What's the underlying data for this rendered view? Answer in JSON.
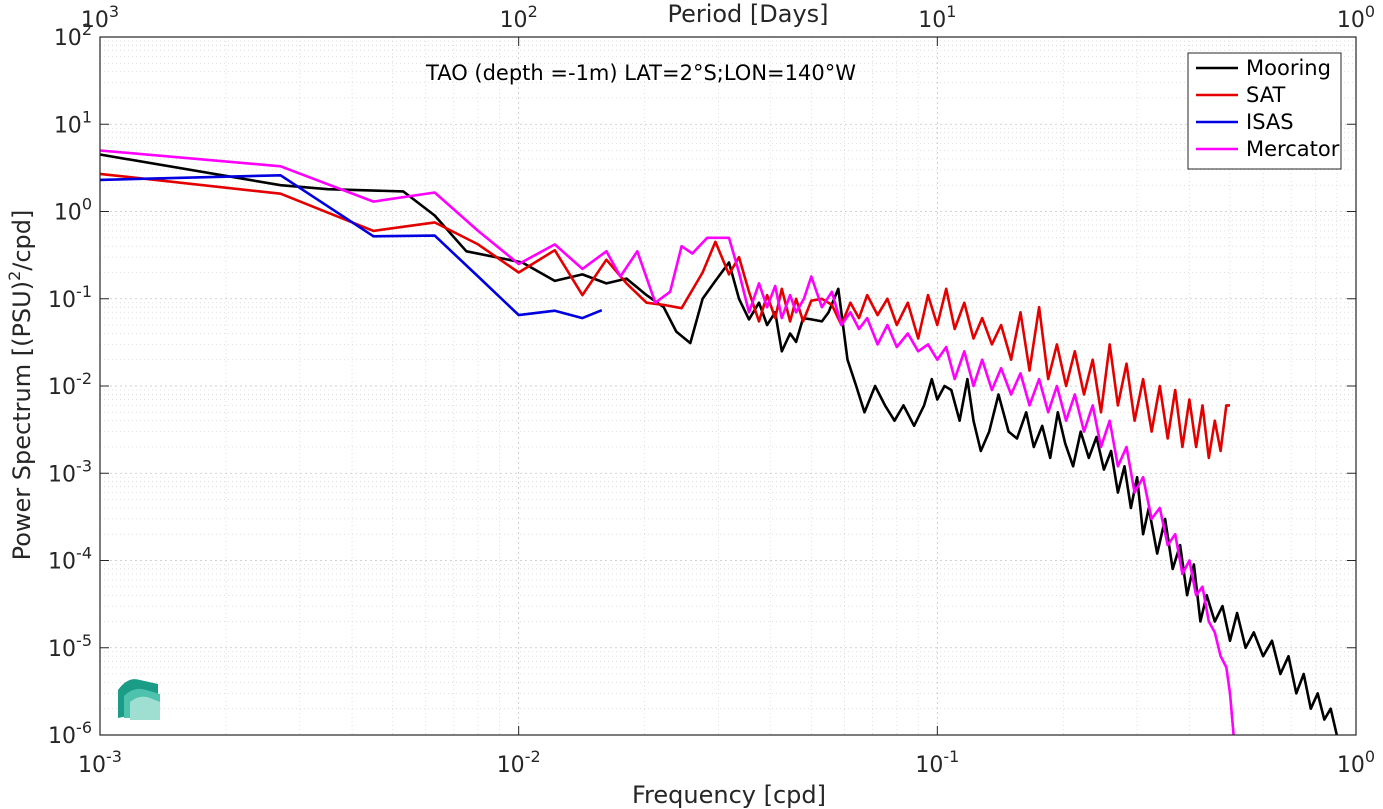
{
  "chart_data": {
    "type": "line",
    "title": "TAO (depth =-1m) LAT=2°S;LON=140°W",
    "xlabel": "Frequency [cpd]",
    "ylabel": "Power Spectrum [(PSU)^2/cpd]",
    "ylabel_parts": {
      "main": "Power Spectrum [(PSU)",
      "sup": "2",
      "tail": "/cpd]"
    },
    "x2label": "Period [Days]",
    "xscale": "log",
    "yscale": "log",
    "xlim": [
      0.001,
      1
    ],
    "ylim": [
      1e-06,
      100
    ],
    "grid": true,
    "legend_position": "top-right",
    "x_ticks": [
      {
        "value": 0.001,
        "base": "10",
        "exp": "-3"
      },
      {
        "value": 0.01,
        "base": "10",
        "exp": "-2"
      },
      {
        "value": 0.1,
        "base": "10",
        "exp": "-1"
      },
      {
        "value": 1,
        "base": "10",
        "exp": "0"
      }
    ],
    "x2_ticks": [
      {
        "value": 0.001,
        "base": "10",
        "exp": "3"
      },
      {
        "value": 0.01,
        "base": "10",
        "exp": "2"
      },
      {
        "value": 0.1,
        "base": "10",
        "exp": "1"
      },
      {
        "value": 1,
        "base": "10",
        "exp": "0"
      }
    ],
    "y_ticks": [
      {
        "value": 100,
        "base": "10",
        "exp": "2"
      },
      {
        "value": 10,
        "base": "10",
        "exp": "1"
      },
      {
        "value": 1,
        "base": "10",
        "exp": "0"
      },
      {
        "value": 0.1,
        "base": "10",
        "exp": "-1"
      },
      {
        "value": 0.01,
        "base": "10",
        "exp": "-2"
      },
      {
        "value": 0.001,
        "base": "10",
        "exp": "-3"
      },
      {
        "value": 0.0001,
        "base": "10",
        "exp": "-4"
      },
      {
        "value": 1e-05,
        "base": "10",
        "exp": "-5"
      },
      {
        "value": 1e-06,
        "base": "10",
        "exp": "-6"
      }
    ],
    "series": [
      {
        "name": "Mooring",
        "color": "#000000",
        "points": [
          [
            0.001,
            4.5
          ],
          [
            0.0027,
            2.0
          ],
          [
            0.0035,
            1.8
          ],
          [
            0.0053,
            1.7
          ],
          [
            0.0063,
            0.9
          ],
          [
            0.0075,
            0.35
          ],
          [
            0.0088,
            0.3
          ],
          [
            0.0102,
            0.26
          ],
          [
            0.0122,
            0.16
          ],
          [
            0.0142,
            0.19
          ],
          [
            0.0162,
            0.15
          ],
          [
            0.0181,
            0.17
          ],
          [
            0.0202,
            0.11
          ],
          [
            0.0222,
            0.08
          ],
          [
            0.0238,
            0.042
          ],
          [
            0.0257,
            0.031
          ],
          [
            0.0275,
            0.1
          ],
          [
            0.0295,
            0.16
          ],
          [
            0.0318,
            0.26
          ],
          [
            0.0336,
            0.1
          ],
          [
            0.0355,
            0.058
          ],
          [
            0.0375,
            0.09
          ],
          [
            0.0392,
            0.05
          ],
          [
            0.041,
            0.07
          ],
          [
            0.0425,
            0.025
          ],
          [
            0.0445,
            0.04
          ],
          [
            0.046,
            0.032
          ],
          [
            0.0478,
            0.06
          ],
          [
            0.05,
            0.058
          ],
          [
            0.053,
            0.055
          ],
          [
            0.055,
            0.07
          ],
          [
            0.058,
            0.13
          ],
          [
            0.061,
            0.02
          ],
          [
            0.064,
            0.01
          ],
          [
            0.067,
            0.005
          ],
          [
            0.071,
            0.01
          ],
          [
            0.075,
            0.006
          ],
          [
            0.079,
            0.004
          ],
          [
            0.083,
            0.006
          ],
          [
            0.088,
            0.0035
          ],
          [
            0.093,
            0.006
          ],
          [
            0.097,
            0.012
          ],
          [
            0.1,
            0.007
          ],
          [
            0.104,
            0.01
          ],
          [
            0.108,
            0.009
          ],
          [
            0.113,
            0.004
          ],
          [
            0.118,
            0.012
          ],
          [
            0.122,
            0.004
          ],
          [
            0.127,
            0.0018
          ],
          [
            0.133,
            0.003
          ],
          [
            0.14,
            0.008
          ],
          [
            0.148,
            0.003
          ],
          [
            0.155,
            0.0025
          ],
          [
            0.163,
            0.005
          ],
          [
            0.17,
            0.002
          ],
          [
            0.178,
            0.0035
          ],
          [
            0.186,
            0.0015
          ],
          [
            0.194,
            0.005
          ],
          [
            0.202,
            0.0022
          ],
          [
            0.211,
            0.0012
          ],
          [
            0.22,
            0.003
          ],
          [
            0.23,
            0.0015
          ],
          [
            0.24,
            0.0026
          ],
          [
            0.25,
            0.0011
          ],
          [
            0.26,
            0.0018
          ],
          [
            0.27,
            0.0006
          ],
          [
            0.28,
            0.0012
          ],
          [
            0.29,
            0.0004
          ],
          [
            0.3,
            0.0009
          ],
          [
            0.31,
            0.0002
          ],
          [
            0.32,
            0.0004
          ],
          [
            0.335,
            0.00012
          ],
          [
            0.35,
            0.0003
          ],
          [
            0.365,
            8e-05
          ],
          [
            0.38,
            0.00015
          ],
          [
            0.395,
            4e-05
          ],
          [
            0.41,
            9e-05
          ],
          [
            0.425,
            2e-05
          ],
          [
            0.44,
            4e-05
          ],
          [
            0.46,
            2e-05
          ],
          [
            0.48,
            3e-05
          ],
          [
            0.5,
            1.2e-05
          ],
          [
            0.52,
            2.5e-05
          ],
          [
            0.545,
            1e-05
          ],
          [
            0.57,
            1.5e-05
          ],
          [
            0.6,
            8e-06
          ],
          [
            0.63,
            1.2e-05
          ],
          [
            0.66,
            5e-06
          ],
          [
            0.69,
            8e-06
          ],
          [
            0.72,
            3e-06
          ],
          [
            0.75,
            5e-06
          ],
          [
            0.78,
            2e-06
          ],
          [
            0.81,
            3e-06
          ],
          [
            0.84,
            1.5e-06
          ],
          [
            0.87,
            2e-06
          ],
          [
            0.9,
            1e-06
          ]
        ]
      },
      {
        "name": "SAT",
        "color": "#e50000",
        "points": [
          [
            0.001,
            2.7
          ],
          [
            0.0027,
            1.6
          ],
          [
            0.0045,
            0.6
          ],
          [
            0.0063,
            0.75
          ],
          [
            0.008,
            0.42
          ],
          [
            0.01,
            0.2
          ],
          [
            0.0122,
            0.36
          ],
          [
            0.0142,
            0.11
          ],
          [
            0.0162,
            0.28
          ],
          [
            0.0181,
            0.15
          ],
          [
            0.0202,
            0.09
          ],
          [
            0.0222,
            0.085
          ],
          [
            0.0245,
            0.078
          ],
          [
            0.0275,
            0.2
          ],
          [
            0.0295,
            0.45
          ],
          [
            0.0318,
            0.19
          ],
          [
            0.0336,
            0.3
          ],
          [
            0.0355,
            0.12
          ],
          [
            0.0375,
            0.055
          ],
          [
            0.0392,
            0.11
          ],
          [
            0.041,
            0.06
          ],
          [
            0.0425,
            0.13
          ],
          [
            0.0445,
            0.055
          ],
          [
            0.046,
            0.1
          ],
          [
            0.0478,
            0.055
          ],
          [
            0.05,
            0.095
          ],
          [
            0.053,
            0.1
          ],
          [
            0.056,
            0.085
          ],
          [
            0.059,
            0.05
          ],
          [
            0.062,
            0.09
          ],
          [
            0.065,
            0.06
          ],
          [
            0.068,
            0.11
          ],
          [
            0.072,
            0.065
          ],
          [
            0.076,
            0.1
          ],
          [
            0.08,
            0.05
          ],
          [
            0.085,
            0.09
          ],
          [
            0.09,
            0.035
          ],
          [
            0.095,
            0.11
          ],
          [
            0.1,
            0.05
          ],
          [
            0.105,
            0.13
          ],
          [
            0.11,
            0.045
          ],
          [
            0.116,
            0.09
          ],
          [
            0.122,
            0.035
          ],
          [
            0.128,
            0.06
          ],
          [
            0.135,
            0.03
          ],
          [
            0.142,
            0.05
          ],
          [
            0.15,
            0.02
          ],
          [
            0.158,
            0.07
          ],
          [
            0.166,
            0.015
          ],
          [
            0.175,
            0.08
          ],
          [
            0.184,
            0.012
          ],
          [
            0.193,
            0.03
          ],
          [
            0.203,
            0.01
          ],
          [
            0.213,
            0.025
          ],
          [
            0.224,
            0.008
          ],
          [
            0.235,
            0.02
          ],
          [
            0.246,
            0.005
          ],
          [
            0.258,
            0.03
          ],
          [
            0.27,
            0.006
          ],
          [
            0.283,
            0.018
          ],
          [
            0.296,
            0.004
          ],
          [
            0.31,
            0.012
          ],
          [
            0.325,
            0.003
          ],
          [
            0.34,
            0.01
          ],
          [
            0.355,
            0.0025
          ],
          [
            0.37,
            0.009
          ],
          [
            0.385,
            0.002
          ],
          [
            0.4,
            0.007
          ],
          [
            0.415,
            0.002
          ],
          [
            0.43,
            0.006
          ],
          [
            0.445,
            0.0015
          ],
          [
            0.46,
            0.004
          ],
          [
            0.475,
            0.0018
          ],
          [
            0.49,
            0.006
          ],
          [
            0.5,
            0.006
          ]
        ]
      },
      {
        "name": "ISAS",
        "color": "#0000e0",
        "points": [
          [
            0.001,
            2.3
          ],
          [
            0.0027,
            2.6
          ],
          [
            0.0045,
            0.52
          ],
          [
            0.0063,
            0.53
          ],
          [
            0.008,
            0.18
          ],
          [
            0.01,
            0.065
          ],
          [
            0.0122,
            0.073
          ],
          [
            0.0142,
            0.06
          ],
          [
            0.0158,
            0.074
          ]
        ]
      },
      {
        "name": "Mercator",
        "color": "#ff00ff",
        "points": [
          [
            0.001,
            5.0
          ],
          [
            0.0027,
            3.3
          ],
          [
            0.0045,
            1.3
          ],
          [
            0.0063,
            1.65
          ],
          [
            0.008,
            0.6
          ],
          [
            0.01,
            0.25
          ],
          [
            0.0122,
            0.42
          ],
          [
            0.0142,
            0.22
          ],
          [
            0.0162,
            0.35
          ],
          [
            0.0175,
            0.18
          ],
          [
            0.0192,
            0.35
          ],
          [
            0.0212,
            0.09
          ],
          [
            0.023,
            0.12
          ],
          [
            0.0245,
            0.4
          ],
          [
            0.026,
            0.33
          ],
          [
            0.0282,
            0.5
          ],
          [
            0.0318,
            0.5
          ],
          [
            0.0336,
            0.2
          ],
          [
            0.0355,
            0.07
          ],
          [
            0.0375,
            0.15
          ],
          [
            0.0392,
            0.08
          ],
          [
            0.041,
            0.14
          ],
          [
            0.0425,
            0.06
          ],
          [
            0.0445,
            0.11
          ],
          [
            0.046,
            0.07
          ],
          [
            0.048,
            0.1
          ],
          [
            0.05,
            0.18
          ],
          [
            0.053,
            0.08
          ],
          [
            0.056,
            0.12
          ],
          [
            0.059,
            0.05
          ],
          [
            0.062,
            0.07
          ],
          [
            0.065,
            0.045
          ],
          [
            0.068,
            0.06
          ],
          [
            0.072,
            0.03
          ],
          [
            0.076,
            0.05
          ],
          [
            0.08,
            0.028
          ],
          [
            0.085,
            0.04
          ],
          [
            0.09,
            0.025
          ],
          [
            0.095,
            0.03
          ],
          [
            0.1,
            0.02
          ],
          [
            0.105,
            0.028
          ],
          [
            0.11,
            0.012
          ],
          [
            0.116,
            0.025
          ],
          [
            0.122,
            0.01
          ],
          [
            0.128,
            0.02
          ],
          [
            0.135,
            0.009
          ],
          [
            0.142,
            0.016
          ],
          [
            0.15,
            0.008
          ],
          [
            0.158,
            0.014
          ],
          [
            0.166,
            0.006
          ],
          [
            0.175,
            0.012
          ],
          [
            0.184,
            0.005
          ],
          [
            0.193,
            0.01
          ],
          [
            0.203,
            0.004
          ],
          [
            0.213,
            0.008
          ],
          [
            0.224,
            0.003
          ],
          [
            0.235,
            0.006
          ],
          [
            0.246,
            0.002
          ],
          [
            0.258,
            0.004
          ],
          [
            0.27,
            0.0012
          ],
          [
            0.283,
            0.002
          ],
          [
            0.296,
            0.0006
          ],
          [
            0.31,
            0.0009
          ],
          [
            0.325,
            0.0003
          ],
          [
            0.34,
            0.0004
          ],
          [
            0.355,
            0.00015
          ],
          [
            0.37,
            0.0002
          ],
          [
            0.385,
            7e-05
          ],
          [
            0.4,
            0.0001
          ],
          [
            0.415,
            4e-05
          ],
          [
            0.43,
            5e-05
          ],
          [
            0.445,
            2e-05
          ],
          [
            0.46,
            1.5e-05
          ],
          [
            0.475,
            8e-06
          ],
          [
            0.49,
            6e-06
          ],
          [
            0.5,
            3e-06
          ],
          [
            0.51,
            1e-06
          ]
        ]
      }
    ]
  }
}
